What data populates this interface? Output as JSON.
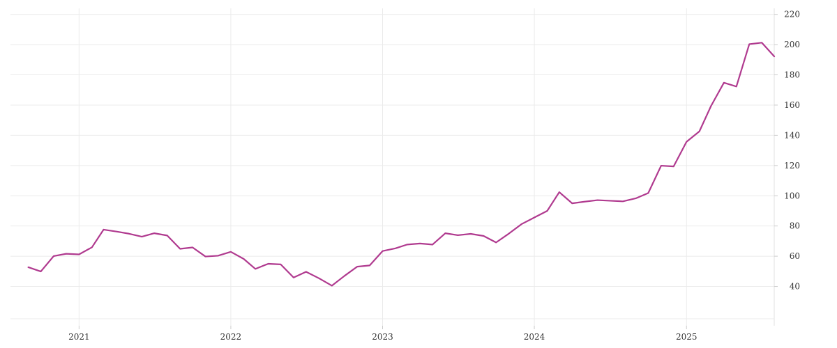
{
  "chart_data": {
    "type": "line",
    "title": "",
    "xlabel": "",
    "ylabel": "",
    "grid": true,
    "y_axis_position": "right",
    "xlim": [
      "2020-07-20",
      "2025-07-31"
    ],
    "ylim": [
      14,
      224
    ],
    "y_ticks": [
      40,
      60,
      80,
      100,
      120,
      140,
      160,
      180,
      200,
      220
    ],
    "x_ticks": [
      {
        "date": "2021-01-01",
        "label": "2021"
      },
      {
        "date": "2022-01-01",
        "label": "2022"
      },
      {
        "date": "2023-01-01",
        "label": "2023"
      },
      {
        "date": "2024-01-01",
        "label": "2024"
      },
      {
        "date": "2025-01-01",
        "label": "2025"
      }
    ],
    "colors": {
      "line": "#b03a8f",
      "grid": "#ebebeb",
      "text": "#333333"
    },
    "series": [
      {
        "points": [
          [
            "2020-09-01",
            52.7
          ],
          [
            "2020-10-01",
            49.9
          ],
          [
            "2020-11-01",
            60.1
          ],
          [
            "2020-12-01",
            61.6
          ],
          [
            "2021-01-01",
            61.2
          ],
          [
            "2021-02-01",
            65.9
          ],
          [
            "2021-03-01",
            77.6
          ],
          [
            "2021-04-01",
            76.3
          ],
          [
            "2021-05-01",
            74.9
          ],
          [
            "2021-06-01",
            72.9
          ],
          [
            "2021-07-01",
            75.2
          ],
          [
            "2021-08-01",
            73.7
          ],
          [
            "2021-09-01",
            64.9
          ],
          [
            "2021-10-01",
            65.8
          ],
          [
            "2021-11-01",
            59.8
          ],
          [
            "2021-12-01",
            60.3
          ],
          [
            "2022-01-01",
            62.9
          ],
          [
            "2022-02-01",
            58.2
          ],
          [
            "2022-03-01",
            51.6
          ],
          [
            "2022-04-01",
            55.0
          ],
          [
            "2022-05-01",
            54.6
          ],
          [
            "2022-06-01",
            45.9
          ],
          [
            "2022-07-01",
            49.7
          ],
          [
            "2022-08-01",
            45.4
          ],
          [
            "2022-09-01",
            40.5
          ],
          [
            "2022-10-01",
            46.9
          ],
          [
            "2022-11-01",
            53.1
          ],
          [
            "2022-12-01",
            53.9
          ],
          [
            "2023-01-01",
            63.4
          ],
          [
            "2023-02-01",
            65.2
          ],
          [
            "2023-03-01",
            67.7
          ],
          [
            "2023-04-01",
            68.4
          ],
          [
            "2023-05-01",
            67.7
          ],
          [
            "2023-06-01",
            75.2
          ],
          [
            "2023-07-01",
            73.9
          ],
          [
            "2023-08-01",
            74.8
          ],
          [
            "2023-09-01",
            73.4
          ],
          [
            "2023-10-01",
            69.1
          ],
          [
            "2023-11-01",
            75.0
          ],
          [
            "2023-12-01",
            81.2
          ],
          [
            "2024-01-01",
            85.6
          ],
          [
            "2024-02-01",
            90.0
          ],
          [
            "2024-03-01",
            102.4
          ],
          [
            "2024-04-01",
            95.0
          ],
          [
            "2024-05-01",
            96.1
          ],
          [
            "2024-06-01",
            97.1
          ],
          [
            "2024-07-01",
            96.7
          ],
          [
            "2024-08-01",
            96.3
          ],
          [
            "2024-09-01",
            98.3
          ],
          [
            "2024-10-01",
            101.8
          ],
          [
            "2024-11-01",
            119.9
          ],
          [
            "2024-12-01",
            119.4
          ],
          [
            "2025-01-01",
            135.7
          ],
          [
            "2025-02-01",
            142.6
          ],
          [
            "2025-03-01",
            159.4
          ],
          [
            "2025-04-01",
            174.8
          ],
          [
            "2025-05-01",
            172.3
          ],
          [
            "2025-06-01",
            200.3
          ],
          [
            "2025-07-01",
            201.3
          ],
          [
            "2025-07-31",
            192.2
          ]
        ]
      }
    ]
  }
}
